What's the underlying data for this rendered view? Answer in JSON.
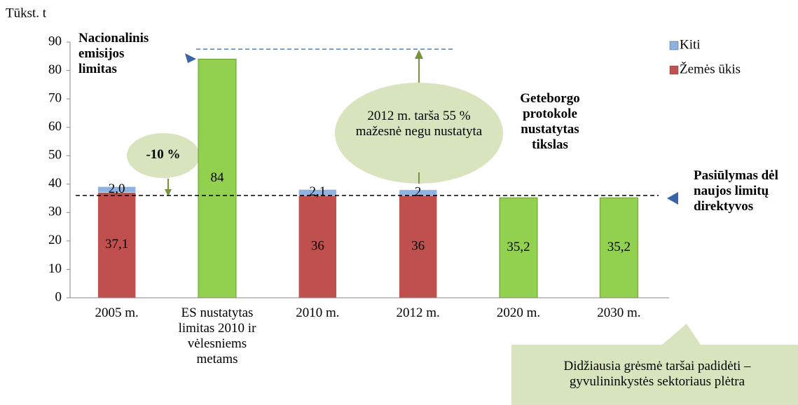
{
  "chart_data": {
    "type": "bar",
    "y_axis_label": "Tūkst. t",
    "categories": [
      "2005 m.",
      "ES nustatytas limitas 2010 ir vėlesniems metams",
      "2010 m.",
      "2012 m.",
      "2020 m.",
      "2030 m."
    ],
    "series": [
      {
        "name": "Žemės ūkis",
        "color": "#c0504d",
        "values": [
          37.1,
          null,
          36,
          36,
          null,
          null
        ],
        "value_labels": [
          "37,1",
          null,
          "36",
          "36",
          null,
          null
        ]
      },
      {
        "name": "Kiti",
        "color": "#8db3e2",
        "values": [
          2.0,
          null,
          2.1,
          2,
          null,
          null
        ],
        "value_labels": [
          "2,0",
          null,
          "2,1",
          "2",
          null,
          null
        ]
      }
    ],
    "limit_values": [
      null,
      84,
      null,
      null,
      35.2,
      35.2
    ],
    "limit_value_labels": [
      null,
      "84",
      null,
      null,
      "35,2",
      "35,2"
    ],
    "limit_color": "#92d050",
    "stacked": true,
    "ylim": [
      0,
      90
    ],
    "yticks": [
      0,
      10,
      20,
      30,
      40,
      50,
      60,
      70,
      80,
      90
    ],
    "reference_lines": [
      {
        "value": 36,
        "color": "#000000"
      },
      {
        "value": 87.5,
        "color": "#4f81bd"
      }
    ],
    "annotations": {
      "national_limit": "Nacionalinis emisijos limitas",
      "minus10": "-10 %",
      "tarsa_2012": "2012 m. tarša 55 % mažesnė negu nustatyta",
      "geteborg": "Geteborgo protokole nustatytas tikslas",
      "proposal": "Pasiūlymas dėl naujos limitų direktyvos",
      "threat": "Didžiausia grėsmė taršai padidėti – gyvulininkystės sektoriaus plėtra"
    }
  }
}
